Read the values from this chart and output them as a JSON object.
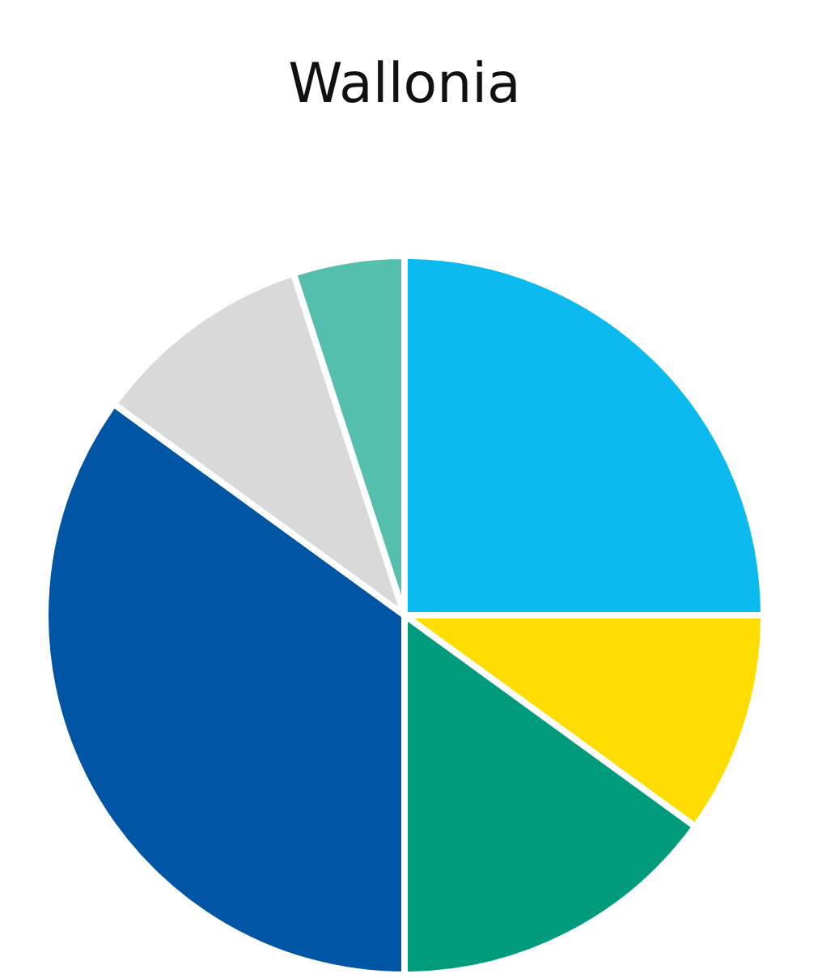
{
  "chart_data": {
    "type": "pie",
    "title": "Wallonia",
    "categories": [
      null,
      null,
      null,
      null,
      null,
      null
    ],
    "values": [
      25,
      10,
      15,
      35,
      10,
      5
    ],
    "colors": [
      "#0bbbef",
      "#ffdd00",
      "#009b7d",
      "#0055a5",
      "#d9d9d9",
      "#55bfad"
    ]
  }
}
